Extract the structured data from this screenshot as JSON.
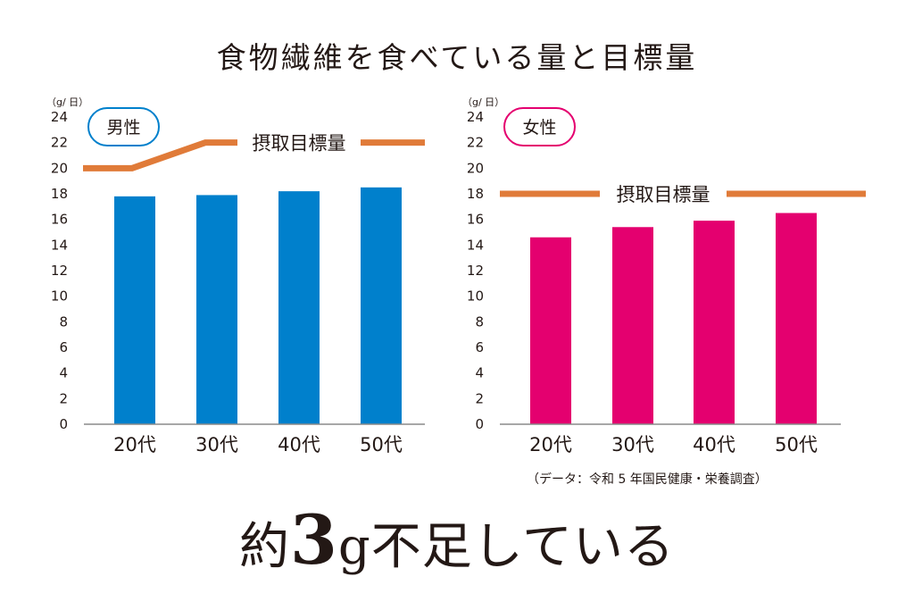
{
  "title": "食物繊維を食べている量と目標量",
  "chart_data": [
    {
      "type": "bar",
      "group_label": "男性",
      "unit": "（g/ 日）",
      "categories": [
        "20代",
        "30代",
        "40代",
        "50代"
      ],
      "values": [
        17.8,
        17.9,
        18.2,
        18.5
      ],
      "ylim": [
        0,
        24
      ],
      "yticks": [
        "0",
        "2",
        "4",
        "6",
        "8",
        "10",
        "12",
        "14",
        "16",
        "18",
        "20",
        "22",
        "24"
      ],
      "target_label": "摂取目標量",
      "target_values": [
        20,
        22,
        22,
        22
      ],
      "bar_color": "#0080CC"
    },
    {
      "type": "bar",
      "group_label": "女性",
      "unit": "（g/ 日）",
      "categories": [
        "20代",
        "30代",
        "40代",
        "50代"
      ],
      "values": [
        14.6,
        15.4,
        15.9,
        16.5
      ],
      "ylim": [
        0,
        24
      ],
      "yticks": [
        "0",
        "2",
        "4",
        "6",
        "8",
        "10",
        "12",
        "14",
        "16",
        "18",
        "20",
        "22",
        "24"
      ],
      "target_label": "摂取目標量",
      "target_values": [
        18,
        18,
        18,
        18
      ],
      "bar_color": "#E4006F"
    }
  ],
  "colors": {
    "target_line": "#E07B39",
    "male_pill": "#0080CC",
    "female_pill": "#E4006F"
  },
  "source": "（データ：令和 5 年国民健康・栄養調査）",
  "headline": {
    "prefix": "約",
    "number": "3",
    "suffix": "g不足している"
  }
}
